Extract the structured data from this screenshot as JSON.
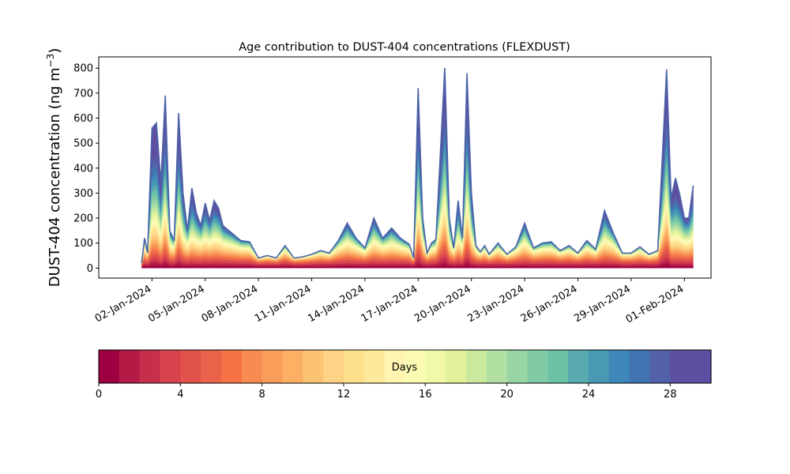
{
  "chart_data": {
    "type": "area",
    "stacked": true,
    "title": "Age contribution to DUST-404 concentrations (FLEXDUST)",
    "ylabel_main": "DUST-404 concentration (ng m",
    "ylabel_sup": "−3",
    "ylabel_close": ")",
    "ylim": [
      -40,
      845
    ],
    "yticks": [
      0,
      100,
      200,
      300,
      400,
      500,
      600,
      700,
      800
    ],
    "xlim": [
      "2023-12-30T00:00",
      "2024-02-02T12:00"
    ],
    "xticks": [
      {
        "date": "2024-01-02",
        "label": "02-Jan-2024"
      },
      {
        "date": "2024-01-05",
        "label": "05-Jan-2024"
      },
      {
        "date": "2024-01-08",
        "label": "08-Jan-2024"
      },
      {
        "date": "2024-01-11",
        "label": "11-Jan-2024"
      },
      {
        "date": "2024-01-14",
        "label": "14-Jan-2024"
      },
      {
        "date": "2024-01-17",
        "label": "17-Jan-2024"
      },
      {
        "date": "2024-01-20",
        "label": "20-Jan-2024"
      },
      {
        "date": "2024-01-23",
        "label": "23-Jan-2024"
      },
      {
        "date": "2024-01-26",
        "label": "26-Jan-2024"
      },
      {
        "date": "2024-01-29",
        "label": "29-Jan-2024"
      },
      {
        "date": "2024-02-01",
        "label": "01-Feb-2024"
      }
    ],
    "grid": false,
    "series_count": 30,
    "total_concentration": {
      "x": [
        "2024-01-01T10:00",
        "2024-01-01T14:00",
        "2024-01-01T18:00",
        "2024-01-02T00:00",
        "2024-01-02T06:00",
        "2024-01-02T12:00",
        "2024-01-02T18:00",
        "2024-01-03T00:00",
        "2024-01-03T06:00",
        "2024-01-03T12:00",
        "2024-01-03T18:00",
        "2024-01-04T00:00",
        "2024-01-04T06:00",
        "2024-01-04T12:00",
        "2024-01-04T18:00",
        "2024-01-05T00:00",
        "2024-01-05T06:00",
        "2024-01-05T12:00",
        "2024-01-05T18:00",
        "2024-01-06T00:00",
        "2024-01-06T12:00",
        "2024-01-07T00:00",
        "2024-01-07T12:00",
        "2024-01-08T00:00",
        "2024-01-08T12:00",
        "2024-01-09T00:00",
        "2024-01-09T12:00",
        "2024-01-10T00:00",
        "2024-01-10T12:00",
        "2024-01-11T00:00",
        "2024-01-11T12:00",
        "2024-01-12T00:00",
        "2024-01-12T12:00",
        "2024-01-13T00:00",
        "2024-01-13T12:00",
        "2024-01-14T00:00",
        "2024-01-14T12:00",
        "2024-01-15T00:00",
        "2024-01-15T12:00",
        "2024-01-16T00:00",
        "2024-01-16T12:00",
        "2024-01-16T18:00",
        "2024-01-17T00:00",
        "2024-01-17T06:00",
        "2024-01-17T12:00",
        "2024-01-17T18:00",
        "2024-01-18T00:00",
        "2024-01-18T12:00",
        "2024-01-18T18:00",
        "2024-01-19T00:00",
        "2024-01-19T06:00",
        "2024-01-19T12:00",
        "2024-01-19T18:00",
        "2024-01-20T00:00",
        "2024-01-20T06:00",
        "2024-01-20T12:00",
        "2024-01-20T18:00",
        "2024-01-21T00:00",
        "2024-01-21T12:00",
        "2024-01-22T00:00",
        "2024-01-22T12:00",
        "2024-01-23T00:00",
        "2024-01-23T12:00",
        "2024-01-24T00:00",
        "2024-01-24T12:00",
        "2024-01-25T00:00",
        "2024-01-25T12:00",
        "2024-01-26T00:00",
        "2024-01-26T12:00",
        "2024-01-27T00:00",
        "2024-01-27T12:00",
        "2024-01-28T00:00",
        "2024-01-28T12:00",
        "2024-01-29T00:00",
        "2024-01-29T12:00",
        "2024-01-30T00:00",
        "2024-01-30T12:00",
        "2024-01-31T00:00",
        "2024-01-31T06:00",
        "2024-01-31T12:00",
        "2024-01-31T18:00",
        "2024-02-01T00:00",
        "2024-02-01T06:00",
        "2024-02-01T12:00"
      ],
      "y": [
        20,
        120,
        60,
        560,
        580,
        340,
        690,
        150,
        110,
        620,
        300,
        150,
        320,
        220,
        170,
        260,
        190,
        270,
        240,
        170,
        140,
        110,
        105,
        40,
        50,
        40,
        90,
        40,
        45,
        55,
        70,
        60,
        110,
        180,
        120,
        80,
        200,
        120,
        160,
        120,
        95,
        40,
        720,
        200,
        60,
        100,
        115,
        800,
        200,
        80,
        270,
        120,
        780,
        300,
        90,
        65,
        90,
        55,
        100,
        55,
        85,
        180,
        80,
        100,
        105,
        70,
        90,
        60,
        110,
        75,
        230,
        140,
        60,
        60,
        85,
        55,
        70,
        795,
        280,
        360,
        290,
        200,
        200,
        330
      ]
    },
    "age_bands_days": [
      0,
      30
    ],
    "colorbar": {
      "label": "Days",
      "ticks": [
        0,
        4,
        8,
        12,
        16,
        20,
        24,
        28
      ],
      "range": [
        0,
        30
      ],
      "colors": [
        "#9e0142",
        "#b31b46",
        "#c62f4b",
        "#d8434e",
        "#e1524a",
        "#e9634b",
        "#f47245",
        "#f78b51",
        "#f99d5b",
        "#fdb064",
        "#fdc374",
        "#fed385",
        "#fee08b",
        "#fee99a",
        "#fff4b0",
        "#fbfbb6",
        "#f1f8a8",
        "#e1f29b",
        "#cbe99e",
        "#b2e0a2",
        "#98d5a4",
        "#80cba4",
        "#6cc2a5",
        "#59aaae",
        "#4899b4",
        "#3d87b9",
        "#4273b3",
        "#5261a8",
        "#5e4fa2",
        "#5e4fa2"
      ]
    }
  }
}
